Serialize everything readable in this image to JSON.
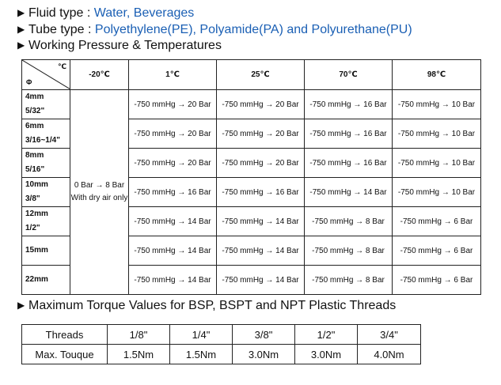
{
  "headings": {
    "fluid_label": "Fluid type : ",
    "fluid_value": "Water, Beverages",
    "tube_label": "Tube type : ",
    "tube_value": "Polyethylene(PE), Polyamide(PA) and Polyurethane(PU)",
    "pressure_title": "Working Pressure & Temperatures",
    "torque_title": "Maximum Torque Values for BSP, BSPT and NPT Plastic Threads"
  },
  "pressure_table": {
    "corner_top": "℃",
    "corner_bottom": "Φ",
    "columns": [
      "-20℃",
      "1℃",
      "25℃",
      "70℃",
      "98℃"
    ],
    "merged_cell_line1": "0 Bar → 8 Bar",
    "merged_cell_line2": "With dry air only",
    "rows": [
      {
        "size_line1": "4mm",
        "size_line2": "5/32\"",
        "values": [
          "-750 mmHg → 20 Bar",
          "-750 mmHg → 20 Bar",
          "-750 mmHg → 16 Bar",
          "-750 mmHg → 10 Bar"
        ]
      },
      {
        "size_line1": "6mm",
        "size_line2": "3/16~1/4\"",
        "values": [
          "-750 mmHg → 20 Bar",
          "-750 mmHg → 20 Bar",
          "-750 mmHg → 16 Bar",
          "-750 mmHg → 10 Bar"
        ]
      },
      {
        "size_line1": "8mm",
        "size_line2": "5/16\"",
        "values": [
          "-750 mmHg → 20 Bar",
          "-750 mmHg → 20 Bar",
          "-750 mmHg → 16 Bar",
          "-750 mmHg → 10 Bar"
        ]
      },
      {
        "size_line1": "10mm",
        "size_line2": "3/8\"",
        "values": [
          "-750 mmHg → 16 Bar",
          "-750 mmHg → 16 Bar",
          "-750 mmHg → 14 Bar",
          "-750 mmHg → 10 Bar"
        ]
      },
      {
        "size_line1": "12mm",
        "size_line2": "1/2\"",
        "values": [
          "-750 mmHg → 14 Bar",
          "-750 mmHg → 14 Bar",
          "-750 mmHg → 8 Bar",
          "-750 mmHg → 6 Bar"
        ]
      },
      {
        "size_line1": "15mm",
        "size_line2": "",
        "values": [
          "-750 mmHg → 14 Bar",
          "-750 mmHg → 14 Bar",
          "-750 mmHg → 8 Bar",
          "-750 mmHg → 6 Bar"
        ]
      },
      {
        "size_line1": "22mm",
        "size_line2": "",
        "values": [
          "-750 mmHg → 14 Bar",
          "-750 mmHg → 14 Bar",
          "-750 mmHg → 8 Bar",
          "-750 mmHg → 6 Bar"
        ]
      }
    ]
  },
  "torque_table": {
    "row1_label": "Threads",
    "row2_label": "Max. Touque",
    "threads": [
      "1/8\"",
      "1/4\"",
      "3/8\"",
      "1/2\"",
      "3/4\""
    ],
    "torques": [
      "1.5Nm",
      "1.5Nm",
      "3.0Nm",
      "3.0Nm",
      "4.0Nm"
    ]
  }
}
